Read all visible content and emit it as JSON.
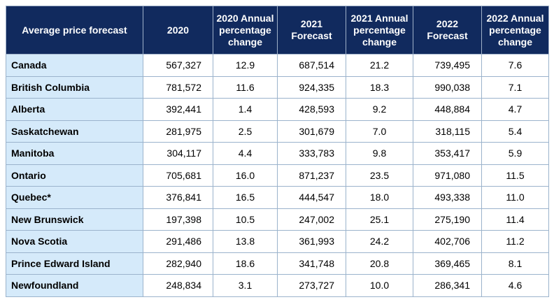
{
  "chart_data": {
    "type": "table",
    "columns": [
      "Average price forecast",
      "2020",
      "2020 Annual percentage change",
      "2021 Forecast",
      "2021 Annual percentage change",
      "2022 Forecast",
      "2022 Annual percentage change"
    ],
    "rows": [
      [
        "Canada",
        "567,327",
        "12.9",
        "687,514",
        "21.2",
        "739,495",
        "7.6"
      ],
      [
        "British Columbia",
        "781,572",
        "11.6",
        "924,335",
        "18.3",
        "990,038",
        "7.1"
      ],
      [
        "Alberta",
        "392,441",
        "1.4",
        "428,593",
        "9.2",
        "448,884",
        "4.7"
      ],
      [
        "Saskatchewan",
        "281,975",
        "2.5",
        "301,679",
        "7.0",
        "318,115",
        "5.4"
      ],
      [
        "Manitoba",
        "304,117",
        "4.4",
        "333,783",
        "9.8",
        "353,417",
        "5.9"
      ],
      [
        "Ontario",
        "705,681",
        "16.0",
        "871,237",
        "23.5",
        "971,080",
        "11.5"
      ],
      [
        "Quebec*",
        "376,841",
        "16.5",
        "444,547",
        "18.0",
        "493,338",
        "11.0"
      ],
      [
        "New Brunswick",
        "197,398",
        "10.5",
        "247,002",
        "25.1",
        "275,190",
        "11.4"
      ],
      [
        "Nova Scotia",
        "291,486",
        "13.8",
        "361,993",
        "24.2",
        "402,706",
        "11.2"
      ],
      [
        "Prince Edward Island",
        "282,940",
        "18.6",
        "341,748",
        "20.8",
        "369,465",
        "8.1"
      ],
      [
        "Newfoundland",
        "248,834",
        "3.1",
        "273,727",
        "10.0",
        "286,341",
        "4.6"
      ]
    ]
  },
  "colors": {
    "header_bg": "#112a5e",
    "header_text": "#ffffff",
    "region_bg": "#d5eafa",
    "border": "#9bb3cc"
  }
}
